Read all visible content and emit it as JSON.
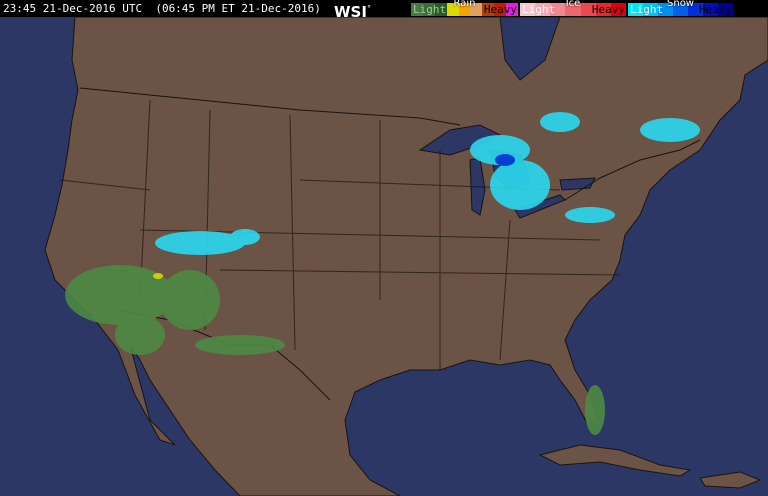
{
  "header": {
    "timestamp": "23:45 21-Dec-2016 UTC  (06:45 PM ET 21-Dec-2016)",
    "logo": "WSI",
    "logo_mark": "°"
  },
  "legend": [
    {
      "title": "Rain",
      "light": "Light",
      "heavy": "Heavy",
      "colors": [
        "#4a7a44",
        "#3d6b35",
        "#2f5a28",
        "#dcd800",
        "#f2a500",
        "#e0a060",
        "#b04010",
        "#c02000",
        "#e020e0"
      ]
    },
    {
      "title": "Ice",
      "light": "Light",
      "heavy": "Heavy",
      "colors": [
        "#f5c8d0",
        "#f3a8b2",
        "#f08890",
        "#ee6870",
        "#ec4850",
        "#e82830",
        "#e00010"
      ]
    },
    {
      "title": "Snow",
      "light": "Light",
      "heavy": "Heavy",
      "colors": [
        "#00e8f8",
        "#00c0f8",
        "#0090f0",
        "#0060e8",
        "#0030d8",
        "#0010b8",
        "#000090"
      ]
    }
  ],
  "map_colors": {
    "land": "#6b5345",
    "water": "#2c3766",
    "borders": "#1a1410",
    "rain": "#4c8a44",
    "snow": "#2bd8f0"
  }
}
